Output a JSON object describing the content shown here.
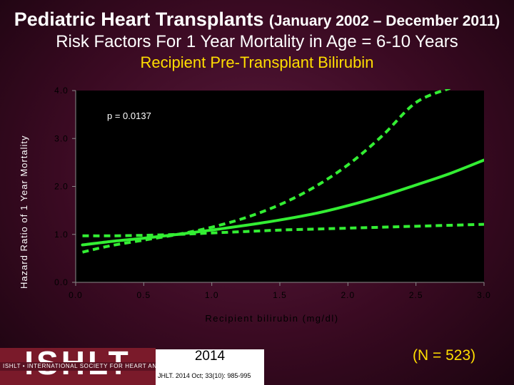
{
  "slide": {
    "title_main": "Pediatric Heart Transplants",
    "title_dates": "(January 2002 – December 2011)",
    "subtitle": "Risk Factors For 1 Year Mortality in Age = 6-10 Years",
    "variable": "Recipient Pre-Transplant Bilirubin",
    "n_text": "(N = 523)"
  },
  "footer": {
    "logo_text": "ISHLT",
    "logo_subtext": "ISHLT • INTERNATIONAL SOCIETY FOR HEART AND LUNG TRANSPLANTATION",
    "year": "2014",
    "citation": "JHLT. 2014 Oct; 33(10): 985-995"
  },
  "colors": {
    "line": "#33ee33",
    "plot_background": "#000000",
    "title_accent": "#ffdd00"
  },
  "chart_data": {
    "type": "line",
    "title": "Risk Factors For 1 Year Mortality in Age = 6-10 Years",
    "xlabel": "Recipient bilirubin (mg/dl)",
    "ylabel": "Hazard Ratio of 1 Year Mortality",
    "xlim": [
      0,
      3
    ],
    "ylim": [
      0,
      4
    ],
    "x_ticks": [
      "0.0",
      "0.5",
      "1.0",
      "1.5",
      "2.0",
      "2.5",
      "3.0"
    ],
    "y_ticks": [
      "0.0",
      "1.0",
      "2.0",
      "3.0",
      "4.0"
    ],
    "annotation": "p = 0.0137",
    "grid": false,
    "legend": "none",
    "series": [
      {
        "style": "solid",
        "x": [
          0.05,
          0.25,
          0.5,
          0.75,
          1.0,
          1.25,
          1.5,
          1.75,
          2.0,
          2.25,
          2.5,
          2.75,
          3.0
        ],
        "y": [
          0.78,
          0.85,
          0.92,
          1.0,
          1.09,
          1.19,
          1.3,
          1.43,
          1.6,
          1.8,
          2.03,
          2.27,
          2.55
        ]
      },
      {
        "style": "dashed",
        "x": [
          0.05,
          0.25,
          0.5,
          0.75,
          1.0,
          1.25,
          1.5,
          1.75,
          2.0,
          2.25,
          2.5,
          2.75
        ],
        "y": [
          0.63,
          0.76,
          0.88,
          1.0,
          1.15,
          1.35,
          1.62,
          1.98,
          2.45,
          3.05,
          3.75,
          4.05
        ]
      },
      {
        "style": "dashed",
        "x": [
          0.05,
          0.25,
          0.5,
          0.75,
          1.0,
          1.25,
          1.5,
          1.75,
          2.0,
          2.25,
          2.5,
          2.75,
          3.0
        ],
        "y": [
          0.97,
          0.97,
          0.98,
          1.0,
          1.03,
          1.06,
          1.09,
          1.11,
          1.13,
          1.15,
          1.17,
          1.19,
          1.21
        ]
      }
    ]
  }
}
